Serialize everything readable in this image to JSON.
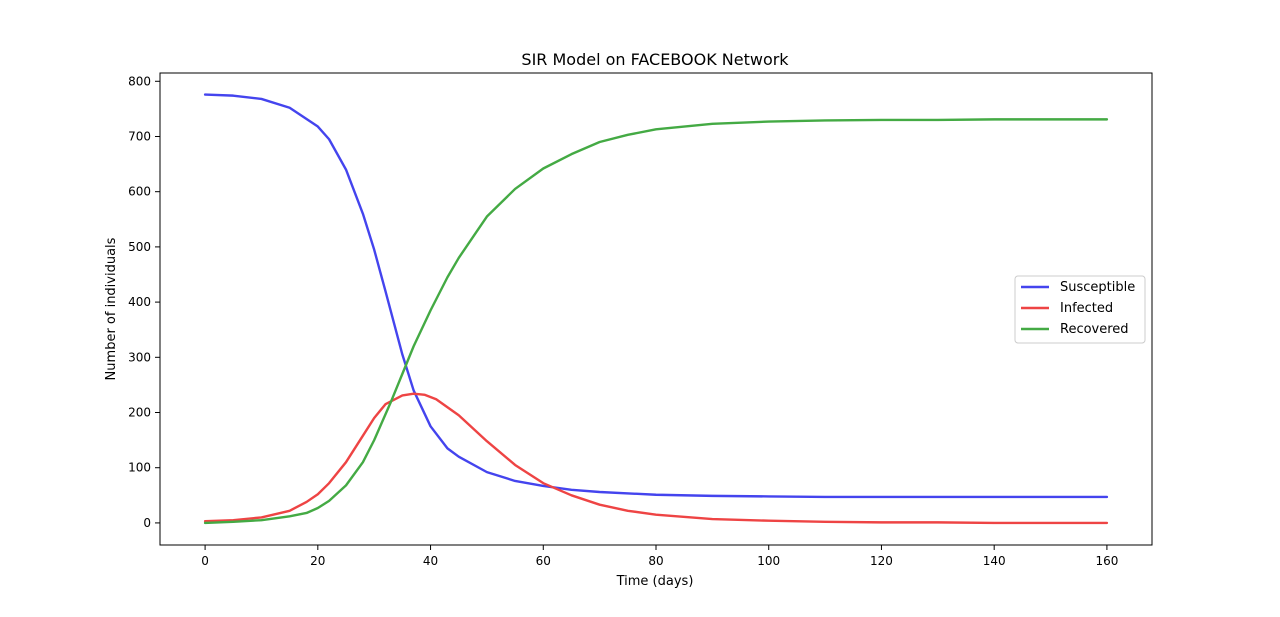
{
  "chart_data": {
    "type": "line",
    "title": "SIR Model on FACEBOOK Network",
    "xlabel": "Time (days)",
    "ylabel": "Number of individuals",
    "xlim": [
      -8,
      168
    ],
    "ylim": [
      -40,
      815
    ],
    "xticks": [
      0,
      20,
      40,
      60,
      80,
      100,
      120,
      140,
      160
    ],
    "yticks": [
      0,
      100,
      200,
      300,
      400,
      500,
      600,
      700,
      800
    ],
    "grid": false,
    "legend_position": "center-right",
    "series": [
      {
        "name": "Susceptible",
        "color": "#4444ee",
        "x": [
          0,
          5,
          10,
          15,
          20,
          22,
          25,
          28,
          30,
          32,
          35,
          37,
          40,
          43,
          45,
          50,
          55,
          60,
          65,
          70,
          80,
          90,
          100,
          110,
          120,
          130,
          140,
          150,
          160
        ],
        "y": [
          776,
          774,
          768,
          752,
          718,
          695,
          640,
          560,
          495,
          420,
          305,
          240,
          175,
          135,
          120,
          92,
          76,
          67,
          60,
          56,
          51,
          49,
          48,
          47,
          47,
          47,
          47,
          47,
          47
        ]
      },
      {
        "name": "Infected",
        "color": "#ee4444",
        "x": [
          0,
          5,
          10,
          15,
          18,
          20,
          22,
          25,
          28,
          30,
          32,
          35,
          37,
          39,
          41,
          45,
          50,
          55,
          60,
          65,
          70,
          75,
          80,
          90,
          100,
          110,
          120,
          130,
          140,
          150,
          160
        ],
        "y": [
          3,
          5,
          10,
          22,
          38,
          52,
          72,
          110,
          158,
          190,
          215,
          231,
          234,
          232,
          224,
          195,
          148,
          105,
          72,
          50,
          33,
          22,
          15,
          7,
          4,
          2,
          1,
          1,
          0,
          0,
          0
        ]
      },
      {
        "name": "Recovered",
        "color": "#44aa44",
        "x": [
          0,
          5,
          10,
          15,
          18,
          20,
          22,
          25,
          28,
          30,
          33,
          35,
          37,
          40,
          43,
          45,
          48,
          50,
          53,
          55,
          60,
          65,
          70,
          75,
          80,
          90,
          100,
          110,
          120,
          130,
          140,
          150,
          160
        ],
        "y": [
          0,
          2,
          5,
          12,
          18,
          27,
          40,
          68,
          110,
          150,
          220,
          270,
          320,
          385,
          445,
          480,
          525,
          555,
          585,
          605,
          642,
          668,
          690,
          703,
          713,
          723,
          727,
          729,
          730,
          730,
          731,
          731,
          731
        ]
      }
    ]
  }
}
